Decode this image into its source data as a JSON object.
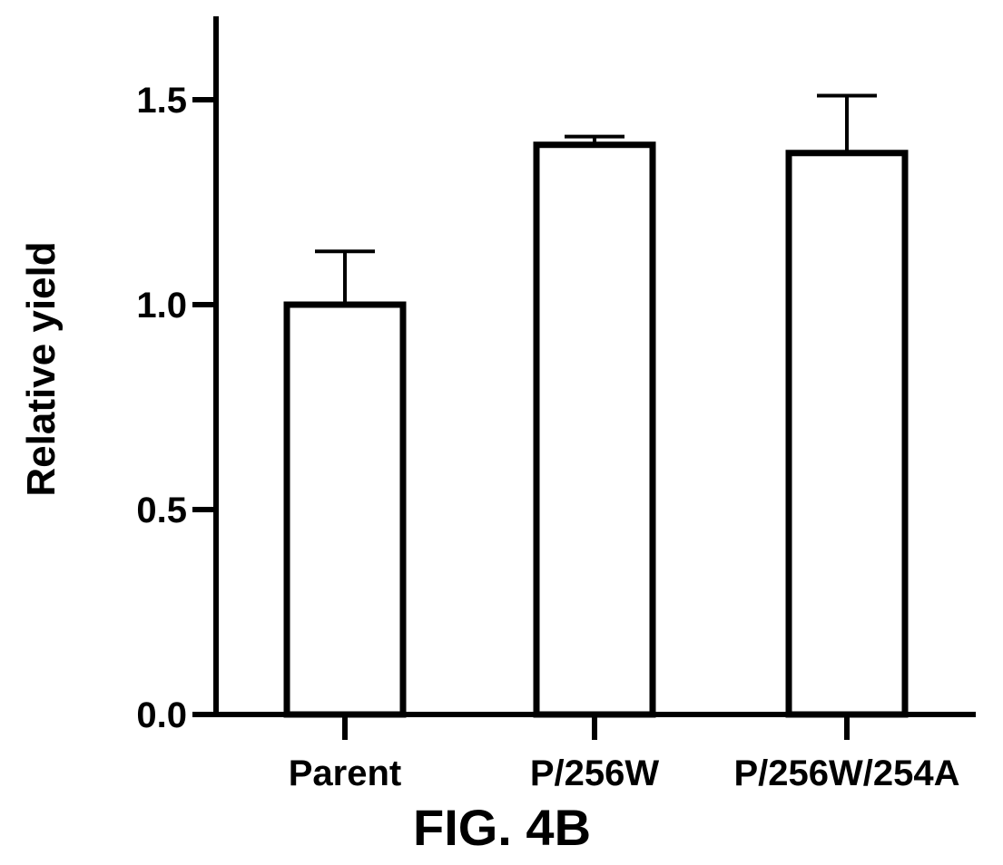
{
  "figure_caption": "FIG. 4B",
  "chart_data": {
    "type": "bar",
    "categories": [
      "Parent",
      "P/256W",
      "P/256W/254A"
    ],
    "values": [
      1.0,
      1.39,
      1.37
    ],
    "error_upper": [
      1.13,
      1.41,
      1.51
    ],
    "ylabel": "Relative yield",
    "xlabel": "",
    "yticks": [
      "0.0",
      "0.5",
      "1.0",
      "1.5"
    ],
    "ylim": [
      0,
      1.7
    ],
    "grid": false,
    "bar_fill": "#ffffff",
    "stroke_color": "#000000"
  }
}
